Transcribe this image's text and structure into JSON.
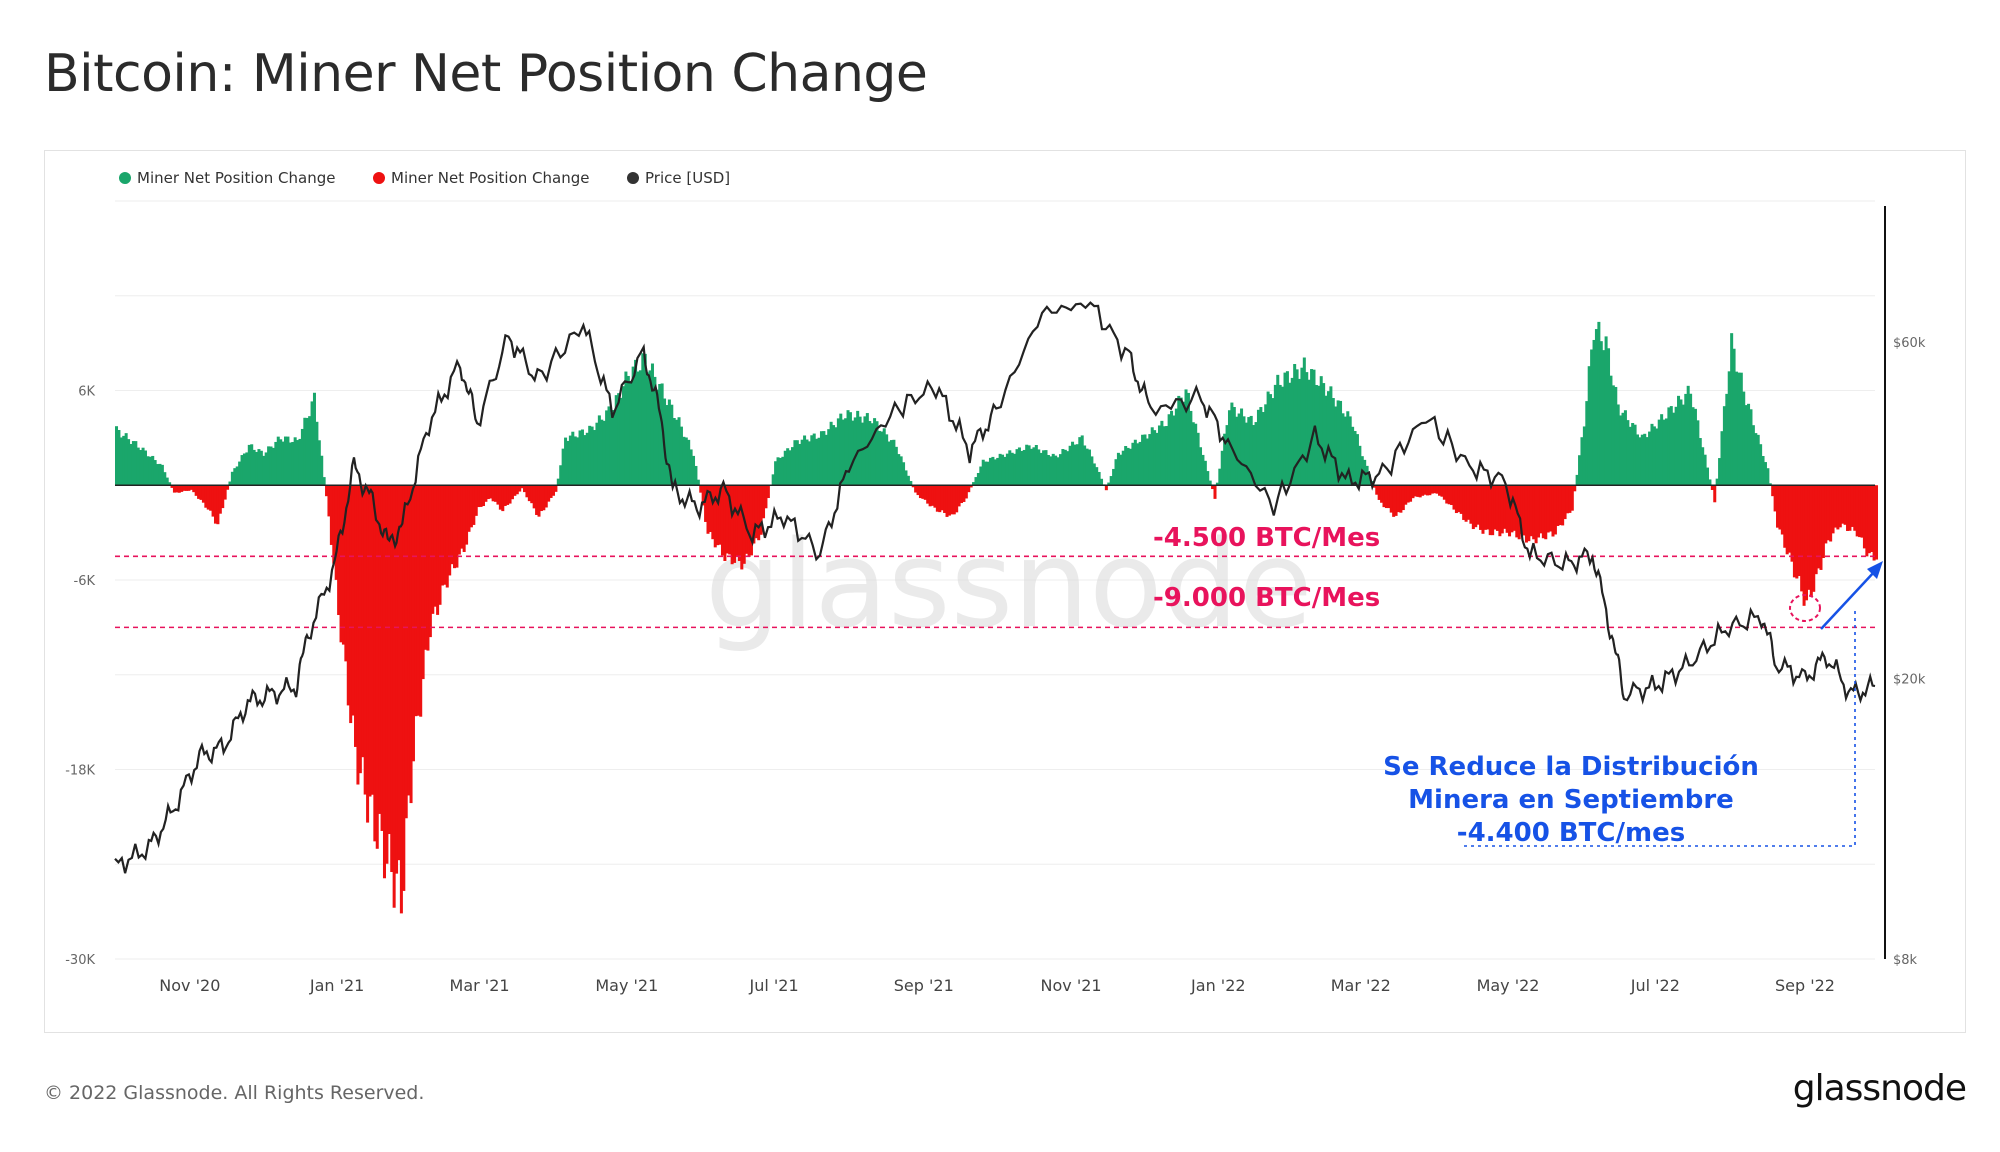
{
  "header": {
    "title": "Bitcoin: Miner Net Position Change"
  },
  "footer": {
    "copyright": "© 2022 Glassnode. All Rights Reserved.",
    "logo_text": "glassnode"
  },
  "colors": {
    "positive": "#1aa66b",
    "negative": "#ee1111",
    "price": "#222222",
    "annotation_red": "#e8135c",
    "annotation_blue": "#1652e6",
    "grid": "#eeeeee"
  },
  "chart_data": {
    "type": "bar",
    "watermark": "glassnode",
    "legend": [
      {
        "name": "Miner Net Position Change",
        "color": "#1aa66b"
      },
      {
        "name": "Miner Net Position Change",
        "color": "#ee1111"
      },
      {
        "name": "Price [USD]",
        "color": "#333333"
      }
    ],
    "left_axis": {
      "ticks": [
        6000,
        -6000,
        -18000,
        -30000
      ],
      "tick_labels": [
        "6K",
        "-6K",
        "-18K",
        "-30K"
      ],
      "range": [
        -30000,
        18000
      ]
    },
    "right_axis": {
      "scale": "log",
      "ticks": [
        60000,
        20000,
        8000
      ],
      "tick_labels": [
        "$60k",
        "$20k",
        "$8k"
      ],
      "range": [
        8000,
        95000
      ]
    },
    "x_axis": {
      "start": "2020-10-01",
      "end": "2022-09-30",
      "ticks": [
        "2020-11-01",
        "2021-01-01",
        "2021-03-01",
        "2021-05-01",
        "2021-07-01",
        "2021-09-01",
        "2021-11-01",
        "2022-01-01",
        "2022-03-01",
        "2022-05-01",
        "2022-07-01",
        "2022-09-01"
      ],
      "tick_labels": [
        "Nov '20",
        "Jan '21",
        "Mar '21",
        "May '21",
        "Jul '21",
        "Sep '21",
        "Nov '21",
        "Jan '22",
        "Mar '22",
        "May '22",
        "Jul '22",
        "Sep '22"
      ]
    },
    "net_position": [
      [
        "2020-10-01",
        3500
      ],
      [
        "2020-10-10",
        2500
      ],
      [
        "2020-10-20",
        1200
      ],
      [
        "2020-10-25",
        -500
      ],
      [
        "2020-11-01",
        -300
      ],
      [
        "2020-11-08",
        -1500
      ],
      [
        "2020-11-12",
        -2500
      ],
      [
        "2020-11-18",
        800
      ],
      [
        "2020-11-25",
        2500
      ],
      [
        "2020-12-01",
        2000
      ],
      [
        "2020-12-08",
        3000
      ],
      [
        "2020-12-15",
        2800
      ],
      [
        "2020-12-22",
        5500
      ],
      [
        "2020-12-28",
        -2000
      ],
      [
        "2021-01-01",
        -8000
      ],
      [
        "2021-01-08",
        -17000
      ],
      [
        "2021-01-15",
        -21000
      ],
      [
        "2021-01-22",
        -24000
      ],
      [
        "2021-01-27",
        -26000
      ],
      [
        "2021-02-01",
        -17000
      ],
      [
        "2021-02-08",
        -9000
      ],
      [
        "2021-02-15",
        -6000
      ],
      [
        "2021-02-22",
        -4000
      ],
      [
        "2021-02-28",
        -1500
      ],
      [
        "2021-03-05",
        -800
      ],
      [
        "2021-03-10",
        -1600
      ],
      [
        "2021-03-18",
        -200
      ],
      [
        "2021-03-25",
        -2000
      ],
      [
        "2021-04-01",
        -400
      ],
      [
        "2021-04-05",
        3000
      ],
      [
        "2021-04-15",
        3500
      ],
      [
        "2021-04-25",
        5000
      ],
      [
        "2021-05-01",
        7000
      ],
      [
        "2021-05-08",
        8000
      ],
      [
        "2021-05-15",
        6000
      ],
      [
        "2021-05-22",
        4000
      ],
      [
        "2021-05-28",
        2000
      ],
      [
        "2021-06-03",
        -3000
      ],
      [
        "2021-06-10",
        -4500
      ],
      [
        "2021-06-18",
        -5000
      ],
      [
        "2021-06-25",
        -3000
      ],
      [
        "2021-07-01",
        1500
      ],
      [
        "2021-07-10",
        2800
      ],
      [
        "2021-07-20",
        3200
      ],
      [
        "2021-07-30",
        4500
      ],
      [
        "2021-08-10",
        4200
      ],
      [
        "2021-08-20",
        2500
      ],
      [
        "2021-08-28",
        -500
      ],
      [
        "2021-09-05",
        -1500
      ],
      [
        "2021-09-12",
        -2000
      ],
      [
        "2021-09-18",
        -800
      ],
      [
        "2021-09-25",
        1500
      ],
      [
        "2021-10-05",
        2000
      ],
      [
        "2021-10-15",
        2500
      ],
      [
        "2021-10-25",
        1800
      ],
      [
        "2021-11-05",
        3000
      ],
      [
        "2021-11-10",
        1500
      ],
      [
        "2021-11-15",
        -300
      ],
      [
        "2021-11-20",
        2000
      ],
      [
        "2021-11-30",
        3000
      ],
      [
        "2021-12-10",
        4000
      ],
      [
        "2021-12-18",
        6000
      ],
      [
        "2021-12-25",
        2000
      ],
      [
        "2021-12-30",
        -800
      ],
      [
        "2022-01-05",
        5000
      ],
      [
        "2022-01-15",
        4000
      ],
      [
        "2022-01-25",
        6500
      ],
      [
        "2022-02-05",
        7500
      ],
      [
        "2022-02-15",
        6000
      ],
      [
        "2022-02-25",
        4000
      ],
      [
        "2022-03-01",
        2000
      ],
      [
        "2022-03-08",
        -1000
      ],
      [
        "2022-03-15",
        -2000
      ],
      [
        "2022-03-22",
        -800
      ],
      [
        "2022-04-01",
        -500
      ],
      [
        "2022-04-08",
        -1500
      ],
      [
        "2022-04-15",
        -2500
      ],
      [
        "2022-04-22",
        -3000
      ],
      [
        "2022-05-01",
        -3000
      ],
      [
        "2022-05-10",
        -3500
      ],
      [
        "2022-05-20",
        -3000
      ],
      [
        "2022-05-27",
        -1500
      ],
      [
        "2022-06-01",
        4000
      ],
      [
        "2022-06-05",
        10000
      ],
      [
        "2022-06-10",
        9000
      ],
      [
        "2022-06-15",
        5000
      ],
      [
        "2022-06-25",
        3000
      ],
      [
        "2022-07-05",
        4500
      ],
      [
        "2022-07-15",
        6000
      ],
      [
        "2022-07-20",
        2500
      ],
      [
        "2022-07-25",
        -1000
      ],
      [
        "2022-08-01",
        9000
      ],
      [
        "2022-08-06",
        6000
      ],
      [
        "2022-08-12",
        3000
      ],
      [
        "2022-08-16",
        1000
      ],
      [
        "2022-08-20",
        -2500
      ],
      [
        "2022-08-26",
        -5000
      ],
      [
        "2022-09-01",
        -7500
      ],
      [
        "2022-09-05",
        -6000
      ],
      [
        "2022-09-10",
        -3500
      ],
      [
        "2022-09-15",
        -2500
      ],
      [
        "2022-09-22",
        -3000
      ],
      [
        "2022-09-27",
        -4500
      ]
    ],
    "price": [
      [
        "2020-10-01",
        10800
      ],
      [
        "2020-10-15",
        11500
      ],
      [
        "2020-10-25",
        13000
      ],
      [
        "2020-11-05",
        15500
      ],
      [
        "2020-11-15",
        16000
      ],
      [
        "2020-11-25",
        18500
      ],
      [
        "2020-12-05",
        19000
      ],
      [
        "2020-12-15",
        19500
      ],
      [
        "2020-12-20",
        23000
      ],
      [
        "2020-12-31",
        29000
      ],
      [
        "2021-01-08",
        40000
      ],
      [
        "2021-01-15",
        36000
      ],
      [
        "2021-01-22",
        31000
      ],
      [
        "2021-01-28",
        33000
      ],
      [
        "2021-02-08",
        46000
      ],
      [
        "2021-02-21",
        56000
      ],
      [
        "2021-02-28",
        46000
      ],
      [
        "2021-03-13",
        61000
      ],
      [
        "2021-03-25",
        53000
      ],
      [
        "2021-04-13",
        63500
      ],
      [
        "2021-04-25",
        48000
      ],
      [
        "2021-05-08",
        58000
      ],
      [
        "2021-05-15",
        47000
      ],
      [
        "2021-05-20",
        37000
      ],
      [
        "2021-05-30",
        35000
      ],
      [
        "2021-06-10",
        37000
      ],
      [
        "2021-06-22",
        32000
      ],
      [
        "2021-07-05",
        34000
      ],
      [
        "2021-07-20",
        30000
      ],
      [
        "2021-08-01",
        40000
      ],
      [
        "2021-08-20",
        48000
      ],
      [
        "2021-09-06",
        52000
      ],
      [
        "2021-09-20",
        42000
      ],
      [
        "2021-10-01",
        48000
      ],
      [
        "2021-10-20",
        66000
      ],
      [
        "2021-11-09",
        68000
      ],
      [
        "2021-11-25",
        57000
      ],
      [
        "2021-12-04",
        48000
      ],
      [
        "2021-12-25",
        50000
      ],
      [
        "2022-01-05",
        43000
      ],
      [
        "2022-01-24",
        35000
      ],
      [
        "2022-02-10",
        44000
      ],
      [
        "2022-02-24",
        38000
      ],
      [
        "2022-03-10",
        39000
      ],
      [
        "2022-03-28",
        47000
      ],
      [
        "2022-04-15",
        40000
      ],
      [
        "2022-04-30",
        38000
      ],
      [
        "2022-05-10",
        30000
      ],
      [
        "2022-05-25",
        29000
      ],
      [
        "2022-06-05",
        30000
      ],
      [
        "2022-06-13",
        23000
      ],
      [
        "2022-06-18",
        19000
      ],
      [
        "2022-07-01",
        19500
      ],
      [
        "2022-07-15",
        21000
      ],
      [
        "2022-07-30",
        23500
      ],
      [
        "2022-08-14",
        24500
      ],
      [
        "2022-08-20",
        21000
      ],
      [
        "2022-09-01",
        20000
      ],
      [
        "2022-09-10",
        21500
      ],
      [
        "2022-09-20",
        19000
      ],
      [
        "2022-09-30",
        19500
      ]
    ],
    "reference_lines": [
      {
        "value": -4500,
        "label": "-4.500 BTC/Mes"
      },
      {
        "value": -9000,
        "label": "-9.000 BTC/Mes"
      }
    ],
    "annotation": {
      "lines": [
        "Se Reduce la Distribución",
        "Minera en Septiembre",
        "-4.400 BTC/mes"
      ]
    }
  }
}
